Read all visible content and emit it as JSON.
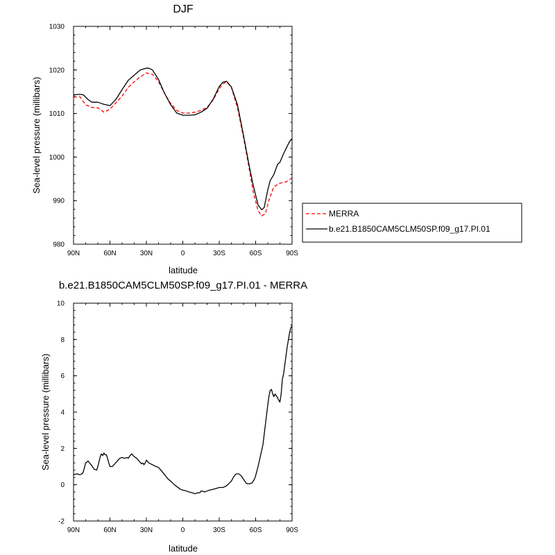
{
  "chart_data": [
    {
      "type": "line",
      "title": "DJF",
      "xlabel": "latitude",
      "ylabel": "Sea-level pressure (millibars)",
      "xlim": [
        -90,
        90
      ],
      "ylim": [
        980,
        1030
      ],
      "x_ticks": [
        -90,
        -60,
        -30,
        0,
        30,
        60,
        90
      ],
      "x_tick_labels": [
        "90N",
        "60N",
        "30N",
        "0",
        "30S",
        "60S",
        "90S"
      ],
      "y_ticks": [
        980,
        990,
        1000,
        1010,
        1020,
        1030
      ],
      "y_tick_labels": [
        "980",
        "990",
        "1000",
        "1010",
        "1020",
        "1030"
      ],
      "legend_position": "right",
      "series": [
        {
          "name": "MERRA",
          "color": "#ff0000",
          "style": "dashed",
          "x": [
            -90,
            -85,
            -80,
            -75,
            -70,
            -65,
            -60,
            -55,
            -50,
            -45,
            -40,
            -35,
            -30,
            -25,
            -20,
            -15,
            -10,
            -5,
            0,
            5,
            10,
            15,
            20,
            25,
            30,
            33,
            36,
            40,
            45,
            50,
            55,
            58,
            62,
            65,
            68,
            71,
            75,
            80,
            85,
            90
          ],
          "y": [
            1013.7,
            1013.9,
            1012.0,
            1011.4,
            1011.3,
            1010.3,
            1011.0,
            1012.5,
            1014.0,
            1016.0,
            1017.3,
            1018.4,
            1019.3,
            1019.0,
            1017.3,
            1014.6,
            1012.3,
            1010.7,
            1010.1,
            1010.1,
            1010.3,
            1010.7,
            1011.4,
            1013.1,
            1015.7,
            1016.8,
            1017.3,
            1016.0,
            1011.3,
            1004.5,
            996.8,
            992.0,
            987.7,
            986.5,
            987.0,
            990.2,
            993.2,
            994.0,
            994.3,
            995.2
          ]
        },
        {
          "name": "b.e21.B1850CAM5CLM50SP.f09_g17.PI.01",
          "color": "#000000",
          "style": "solid",
          "x": [
            -90,
            -85,
            -82,
            -78,
            -75,
            -70,
            -67,
            -65,
            -60,
            -55,
            -50,
            -45,
            -40,
            -35,
            -30,
            -28,
            -25,
            -20,
            -15,
            -10,
            -5,
            0,
            5,
            10,
            15,
            20,
            25,
            30,
            33,
            36,
            40,
            45,
            50,
            55,
            58,
            62,
            65,
            67,
            70,
            72,
            75,
            78,
            80,
            83,
            86,
            88,
            90
          ],
          "y": [
            1014.3,
            1014.4,
            1014.3,
            1013.2,
            1012.6,
            1012.6,
            1012.3,
            1012.1,
            1011.8,
            1013.3,
            1015.5,
            1017.6,
            1018.8,
            1020.0,
            1020.4,
            1020.4,
            1020.0,
            1017.8,
            1014.6,
            1012.0,
            1010.1,
            1009.6,
            1009.6,
            1009.7,
            1010.3,
            1011.2,
            1013.3,
            1016.2,
            1017.2,
            1017.4,
            1016.1,
            1012.0,
            1005.0,
            997.5,
            993.5,
            989.0,
            987.9,
            988.4,
            992.5,
            994.6,
            996.0,
            998.3,
            998.8,
            1000.8,
            1002.5,
            1003.6,
            1004.2
          ]
        }
      ]
    },
    {
      "type": "line",
      "title": "b.e21.B1850CAM5CLM50SP.f09_g17.PI.01 - MERRA",
      "xlabel": "latitude",
      "ylabel": "Sea-level pressure (millibars)",
      "xlim": [
        -90,
        90
      ],
      "ylim": [
        -2,
        10
      ],
      "x_ticks": [
        -90,
        -60,
        -30,
        0,
        30,
        60,
        90
      ],
      "x_tick_labels": [
        "90N",
        "60N",
        "30N",
        "0",
        "30S",
        "60S",
        "90S"
      ],
      "y_ticks": [
        -2,
        0,
        2,
        4,
        6,
        8,
        10
      ],
      "y_tick_labels": [
        "-2",
        "0",
        "2",
        "4",
        "6",
        "8",
        "10"
      ],
      "series": [
        {
          "color": "#000000",
          "style": "solid",
          "x": [
            -90,
            -87,
            -85,
            -83,
            -82,
            -80,
            -78,
            -75,
            -73,
            -71,
            -70,
            -68,
            -67,
            -66,
            -65,
            -64,
            -63,
            -62,
            -61,
            -60,
            -58,
            -56,
            -54,
            -52,
            -50,
            -48,
            -46,
            -45,
            -44,
            -43,
            -42,
            -41,
            -40,
            -38,
            -36,
            -34,
            -33,
            -32,
            -31,
            -30,
            -28,
            -25,
            -22,
            -20,
            -18,
            -15,
            -12,
            -10,
            -7,
            -5,
            -2,
            0,
            3,
            5,
            8,
            10,
            12,
            14,
            15,
            16,
            18,
            20,
            22,
            25,
            28,
            30,
            33,
            35,
            37,
            40,
            42,
            44,
            46,
            48,
            50,
            52,
            53,
            55,
            57,
            59,
            60,
            62,
            64,
            66,
            68,
            70,
            71,
            72,
            73,
            74,
            75,
            76,
            77,
            78,
            79,
            80,
            81,
            82,
            83,
            84,
            85,
            86,
            87,
            88,
            89,
            90
          ],
          "y": [
            0.55,
            0.6,
            0.55,
            0.6,
            0.7,
            1.2,
            1.3,
            1.05,
            0.85,
            0.8,
            1.0,
            1.55,
            1.7,
            1.6,
            1.75,
            1.65,
            1.65,
            1.45,
            1.2,
            1.0,
            1.0,
            1.15,
            1.3,
            1.45,
            1.5,
            1.45,
            1.5,
            1.45,
            1.55,
            1.65,
            1.7,
            1.6,
            1.55,
            1.45,
            1.3,
            1.15,
            1.2,
            1.1,
            1.2,
            1.35,
            1.2,
            1.1,
            1.0,
            0.95,
            0.8,
            0.55,
            0.3,
            0.2,
            0.0,
            -0.1,
            -0.25,
            -0.3,
            -0.35,
            -0.4,
            -0.45,
            -0.5,
            -0.45,
            -0.45,
            -0.35,
            -0.35,
            -0.4,
            -0.35,
            -0.3,
            -0.25,
            -0.2,
            -0.15,
            -0.15,
            -0.1,
            0.0,
            0.2,
            0.45,
            0.6,
            0.6,
            0.5,
            0.3,
            0.1,
            0.05,
            0.05,
            0.1,
            0.3,
            0.5,
            1.0,
            1.6,
            2.2,
            3.3,
            4.4,
            4.9,
            5.2,
            5.25,
            5.0,
            4.85,
            5.0,
            4.9,
            4.8,
            4.65,
            4.55,
            5.0,
            5.8,
            6.1,
            6.6,
            7.1,
            7.6,
            8.0,
            8.4,
            8.65,
            8.75
          ]
        }
      ]
    }
  ]
}
